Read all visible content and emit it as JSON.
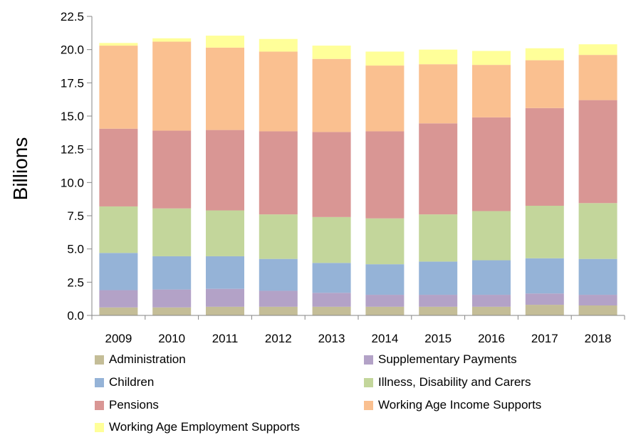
{
  "chart_data": {
    "type": "bar",
    "stacked": true,
    "ylabel": "Billions",
    "xlabel": "",
    "title": "",
    "ylim": [
      0,
      22.5
    ],
    "yticks": [
      "0.0",
      "2.5",
      "5.0",
      "7.5",
      "10.0",
      "12.5",
      "15.0",
      "17.5",
      "20.0",
      "22.5"
    ],
    "categories": [
      "2009",
      "2010",
      "2011",
      "2012",
      "2013",
      "2014",
      "2015",
      "2016",
      "2017",
      "2018"
    ],
    "legend_position": "bottom",
    "series": [
      {
        "name": "Administration",
        "color": "#c4bd97",
        "values": [
          0.6,
          0.6,
          0.65,
          0.65,
          0.65,
          0.65,
          0.65,
          0.65,
          0.8,
          0.75
        ]
      },
      {
        "name": "Supplementary Payments",
        "color": "#b3a2c7",
        "values": [
          1.3,
          1.35,
          1.35,
          1.2,
          1.05,
          0.9,
          0.9,
          0.9,
          0.85,
          0.8
        ]
      },
      {
        "name": "Children",
        "color": "#95b3d7",
        "values": [
          2.8,
          2.5,
          2.45,
          2.4,
          2.25,
          2.3,
          2.5,
          2.6,
          2.65,
          2.7
        ]
      },
      {
        "name": "Illness, Disability and Carers",
        "color": "#c3d69b",
        "values": [
          3.5,
          3.6,
          3.45,
          3.35,
          3.45,
          3.45,
          3.55,
          3.7,
          3.95,
          4.2
        ]
      },
      {
        "name": "Pensions",
        "color": "#d99694",
        "values": [
          5.85,
          5.85,
          6.05,
          6.25,
          6.4,
          6.55,
          6.85,
          7.05,
          7.35,
          7.75
        ]
      },
      {
        "name": "Working Age Income Supports",
        "color": "#fac090",
        "values": [
          6.25,
          6.7,
          6.2,
          6.0,
          5.5,
          4.95,
          4.45,
          3.95,
          3.6,
          3.4
        ]
      },
      {
        "name": "Working Age Employment Supports",
        "color": "#ffff99",
        "values": [
          0.2,
          0.25,
          0.9,
          0.95,
          1.0,
          1.05,
          1.1,
          1.05,
          0.9,
          0.8
        ]
      }
    ]
  }
}
